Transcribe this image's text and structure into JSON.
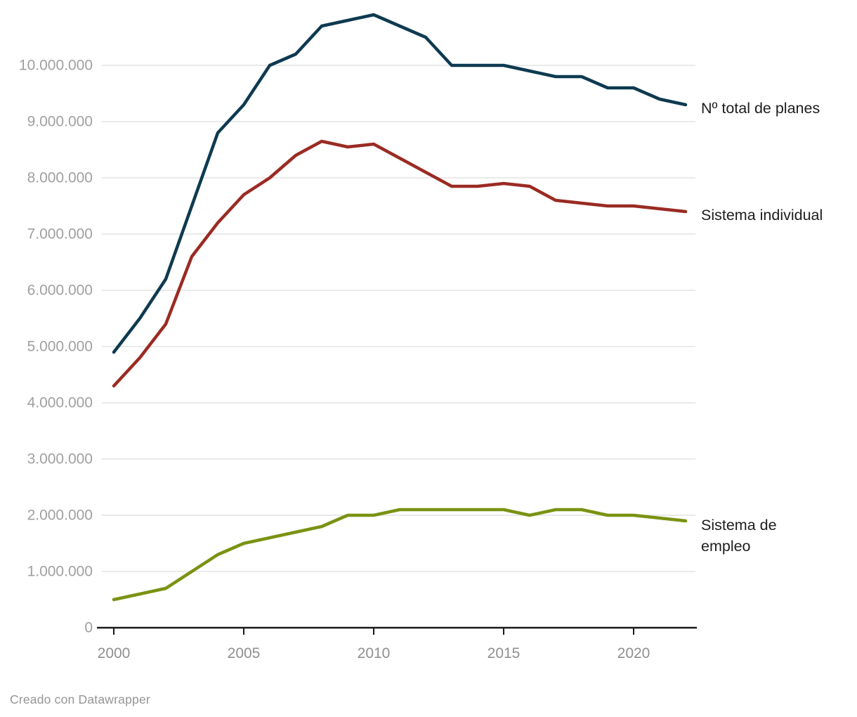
{
  "footer": {
    "credit": "Creado con Datawrapper"
  },
  "colors": {
    "background": "#ffffff",
    "gridline": "#e4e4e4",
    "axis_line": "#1a1a1a",
    "x_tick_label": "#8f8f8f",
    "y_tick_label": "#a0a0a0",
    "series_label_text": "#1d1d1d",
    "credit_text": "#959595",
    "total_line": "#0e3a50",
    "individual_line": "#9a2b23",
    "empleo_line": "#7a9212"
  },
  "chart_data": {
    "type": "line",
    "x_years": [
      2000,
      2001,
      2002,
      2003,
      2004,
      2005,
      2006,
      2007,
      2008,
      2009,
      2010,
      2011,
      2012,
      2013,
      2014,
      2015,
      2016,
      2017,
      2018,
      2019,
      2020,
      2021,
      2022
    ],
    "series": [
      {
        "id": "total",
        "label": "Nº total de planes",
        "color": "#0e3a50",
        "values": [
          4900000,
          5500000,
          6200000,
          7500000,
          8800000,
          9300000,
          10000000,
          10200000,
          10700000,
          10800000,
          10900000,
          10700000,
          10500000,
          10000000,
          10000000,
          10000000,
          9900000,
          9800000,
          9800000,
          9600000,
          9600000,
          9400000,
          9300000
        ]
      },
      {
        "id": "individual",
        "label": "Sistema individual",
        "color": "#9a2b23",
        "values": [
          4300000,
          4800000,
          5400000,
          6600000,
          7200000,
          7700000,
          8000000,
          8400000,
          8650000,
          8550000,
          8600000,
          8350000,
          8100000,
          7850000,
          7850000,
          7900000,
          7850000,
          7600000,
          7550000,
          7500000,
          7500000,
          7450000,
          7400000
        ]
      },
      {
        "id": "empleo",
        "label": "Sistema de empleo",
        "label_lines": [
          "Sistema de",
          "empleo"
        ],
        "color": "#7a9212",
        "values": [
          500000,
          600000,
          700000,
          1000000,
          1300000,
          1500000,
          1600000,
          1700000,
          1800000,
          2000000,
          2000000,
          2100000,
          2100000,
          2100000,
          2100000,
          2100000,
          2000000,
          2100000,
          2100000,
          2000000,
          2000000,
          1950000,
          1900000
        ]
      }
    ],
    "xticks": {
      "values": [
        2000,
        2005,
        2010,
        2015,
        2020
      ],
      "labels": [
        "2000",
        "2005",
        "2010",
        "2015",
        "2020"
      ]
    },
    "yticks": {
      "values": [
        0,
        1000000,
        2000000,
        3000000,
        4000000,
        5000000,
        6000000,
        7000000,
        8000000,
        9000000,
        10000000
      ],
      "labels": [
        "0",
        "1.000.000",
        "2.000.000",
        "3.000.000",
        "4.000.000",
        "5.000.000",
        "6.000.000",
        "7.000.000",
        "8.000.000",
        "9.000.000",
        "10.000.000"
      ]
    },
    "xlim": [
      2000,
      2022
    ],
    "ylim": [
      0,
      10900000
    ],
    "grid": true,
    "legend_position": "right-of-line-ends"
  }
}
